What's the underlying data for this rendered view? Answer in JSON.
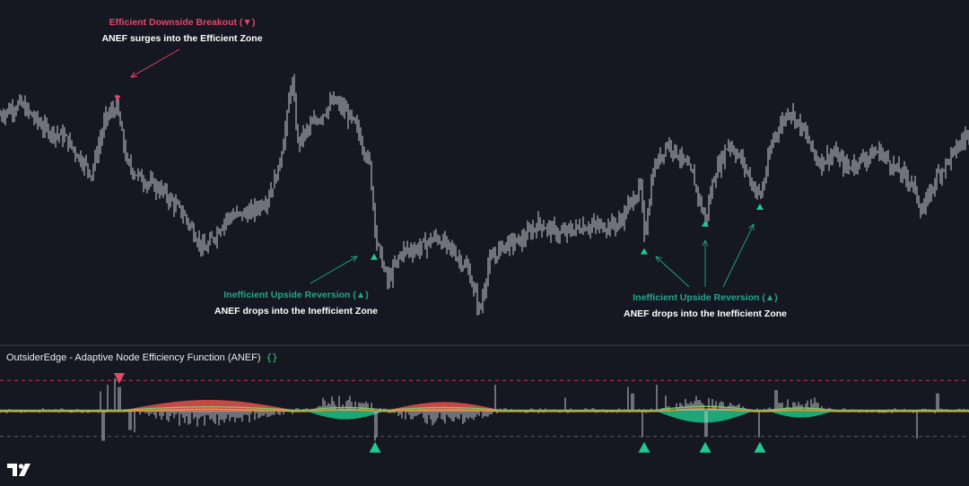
{
  "annotations": {
    "top": {
      "title": "Efficient Downside Breakout (▼)",
      "subtitle": "ANEF surges into the Efficient Zone"
    },
    "middle": {
      "title": "Inefficient Upside Reversion (▲)",
      "subtitle": "ANEF drops into the Inefficient Zone"
    },
    "right": {
      "title": "Inefficient Upside Reversion (▲)",
      "subtitle": "ANEF drops into the Inefficient Zone"
    }
  },
  "indicator": {
    "title": "OutsiderEdge - Adaptive Node Efficiency Function (ANEF)",
    "settings_icon": "{}"
  },
  "logo": {
    "name": "tradingview-logo-icon"
  },
  "colors": {
    "background": "#151821",
    "price": "#cfd0d6",
    "efficient": "#e2486a",
    "inefficient": "#1fc98f",
    "fill_bear": "#e8514d",
    "fill_bull": "#1fbf85",
    "ma_orange": "#f0a030",
    "ma_green": "#7cc96a",
    "divider": "#2e3240"
  },
  "chart_data": [
    {
      "type": "line",
      "name": "price",
      "x_range": [
        0,
        1080
      ],
      "y_range": [
        0,
        100
      ],
      "anchors": [
        [
          0,
          78
        ],
        [
          22,
          82
        ],
        [
          50,
          73
        ],
        [
          72,
          70
        ],
        [
          102,
          57
        ],
        [
          118,
          77
        ],
        [
          130,
          81
        ],
        [
          142,
          60
        ],
        [
          158,
          55
        ],
        [
          180,
          51
        ],
        [
          205,
          42
        ],
        [
          228,
          29
        ],
        [
          252,
          41
        ],
        [
          280,
          43
        ],
        [
          298,
          48
        ],
        [
          310,
          58
        ],
        [
          320,
          77
        ],
        [
          325,
          92
        ],
        [
          332,
          68
        ],
        [
          344,
          73
        ],
        [
          358,
          78
        ],
        [
          372,
          83
        ],
        [
          386,
          79
        ],
        [
          398,
          73
        ],
        [
          412,
          60
        ],
        [
          420,
          32
        ],
        [
          432,
          18
        ],
        [
          448,
          29
        ],
        [
          466,
          30
        ],
        [
          486,
          34
        ],
        [
          505,
          29
        ],
        [
          522,
          22
        ],
        [
          535,
          7
        ],
        [
          544,
          24
        ],
        [
          560,
          31
        ],
        [
          582,
          33
        ],
        [
          600,
          39
        ],
        [
          624,
          35
        ],
        [
          650,
          38
        ],
        [
          672,
          38
        ],
        [
          690,
          39
        ],
        [
          702,
          46
        ],
        [
          714,
          52
        ],
        [
          718,
          34
        ],
        [
          728,
          58
        ],
        [
          744,
          68
        ],
        [
          758,
          63
        ],
        [
          772,
          56
        ],
        [
          786,
          40
        ],
        [
          796,
          56
        ],
        [
          812,
          68
        ],
        [
          828,
          61
        ],
        [
          840,
          52
        ],
        [
          848,
          49
        ],
        [
          862,
          70
        ],
        [
          880,
          80
        ],
        [
          896,
          72
        ],
        [
          912,
          61
        ],
        [
          930,
          64
        ],
        [
          944,
          59
        ],
        [
          960,
          62
        ],
        [
          980,
          65
        ],
        [
          1000,
          58
        ],
        [
          1016,
          54
        ],
        [
          1028,
          43
        ],
        [
          1044,
          56
        ],
        [
          1062,
          64
        ],
        [
          1080,
          72
        ]
      ],
      "signals": [
        {
          "kind": "down",
          "x": 131,
          "y": 84
        },
        {
          "kind": "up",
          "x": 417,
          "y": 27
        },
        {
          "kind": "up",
          "x": 718,
          "y": 29
        },
        {
          "kind": "up",
          "x": 786,
          "y": 39
        },
        {
          "kind": "up",
          "x": 847,
          "y": 45
        }
      ]
    },
    {
      "type": "area",
      "name": "ANEF",
      "x_range": [
        0,
        1080
      ],
      "y_range": [
        -1,
        1
      ],
      "efficient_level": 0.7,
      "inefficient_level": -0.6,
      "zones": [
        {
          "from": 135,
          "to": 330,
          "amp": 0.25,
          "polarity": "bear"
        },
        {
          "from": 340,
          "to": 430,
          "amp": -0.2,
          "polarity": "bull"
        },
        {
          "from": 430,
          "to": 560,
          "amp": 0.2,
          "polarity": "bear"
        },
        {
          "from": 730,
          "to": 840,
          "amp": -0.28,
          "polarity": "bull"
        },
        {
          "from": 855,
          "to": 930,
          "amp": -0.16,
          "polarity": "bull"
        }
      ],
      "spikes": [
        [
          112,
          0.45
        ],
        [
          115,
          -0.7
        ],
        [
          120,
          0.6
        ],
        [
          128,
          0.75
        ],
        [
          133,
          0.55
        ],
        [
          145,
          -0.45
        ],
        [
          150,
          -0.5
        ],
        [
          200,
          -0.35
        ],
        [
          212,
          -0.3
        ],
        [
          360,
          0.3
        ],
        [
          418,
          -0.7
        ],
        [
          420,
          -0.62
        ],
        [
          552,
          0.6
        ],
        [
          630,
          0.3
        ],
        [
          700,
          0.55
        ],
        [
          705,
          0.4
        ],
        [
          716,
          -0.62
        ],
        [
          732,
          0.6
        ],
        [
          742,
          0.35
        ],
        [
          787,
          -0.6
        ],
        [
          846,
          -0.62
        ],
        [
          865,
          0.48
        ],
        [
          1022,
          -0.65
        ],
        [
          1045,
          0.4
        ]
      ],
      "signals": [
        {
          "kind": "down",
          "x": 133,
          "level": 0.75
        },
        {
          "kind": "up",
          "x": 418,
          "level": -0.85
        },
        {
          "kind": "up",
          "x": 718,
          "level": -0.85
        },
        {
          "kind": "up",
          "x": 786,
          "level": -0.85
        },
        {
          "kind": "up",
          "x": 847,
          "level": -0.85
        }
      ]
    }
  ]
}
